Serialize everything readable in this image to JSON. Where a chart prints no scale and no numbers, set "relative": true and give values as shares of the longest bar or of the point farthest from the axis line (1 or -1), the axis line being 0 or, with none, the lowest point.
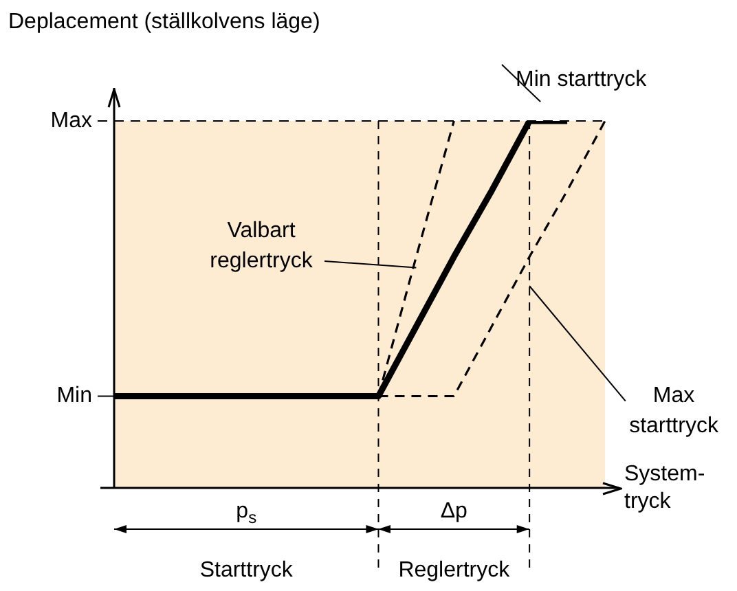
{
  "chart_data": {
    "type": "line",
    "ylabel": "Deplacement (ställkolvens läge)",
    "xlabel": "System-\ntryck",
    "categories": [
      null,
      null,
      null,
      null,
      null,
      null,
      null,
      null,
      null,
      null,
      null,
      null,
      null,
      null
    ],
    "relative": true,
    "grid": false,
    "legend": false,
    "marker": "none",
    "series": [
      {
        "name": "Min starttryck",
        "color": "#000000",
        "values": [
          0.25,
          0.25,
          0.25,
          0.25,
          0.25,
          0.25,
          0.25,
          0.25,
          0.44,
          0.63,
          0.81,
          1,
          1,
          null
        ],
        "line_style": "solid"
      },
      {
        "name": "Valbart\nreglertryck",
        "color": "#000000",
        "values": [
          null,
          null,
          null,
          null,
          null,
          null,
          null,
          0.25,
          0.63,
          1,
          null,
          null,
          null,
          null
        ],
        "line_style": "dashed"
      },
      {
        "name": "Max\nstarttryck",
        "color": "#000000",
        "values": [
          null,
          null,
          null,
          null,
          null,
          null,
          null,
          0.25,
          0.25,
          0.25,
          0.44,
          0.63,
          0.81,
          1
        ],
        "line_style": "dashed"
      }
    ],
    "ref_lines": [
      {
        "axis": "y",
        "value": 1,
        "label": "Max",
        "line_style": "dashed"
      },
      {
        "axis": "y",
        "value": 0.25,
        "label": "Min"
      }
    ],
    "bands": [
      {
        "axis": "y",
        "from": 0,
        "to": 1,
        "color": "#fdebd2"
      }
    ],
    "annotations": [
      "p$_{s}$",
      "Δp",
      "Starttryck",
      "Reglertryck"
    ]
  }
}
